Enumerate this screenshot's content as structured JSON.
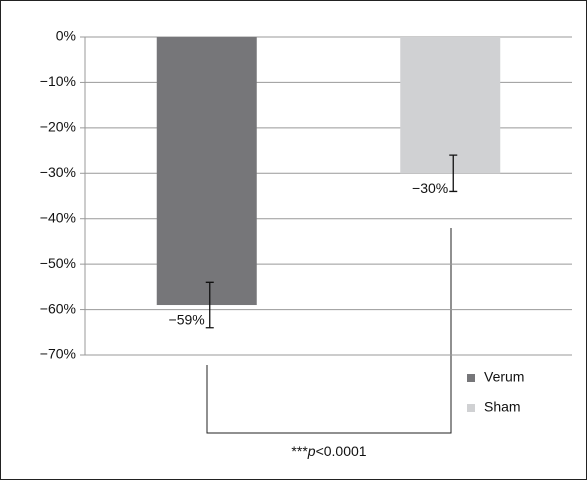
{
  "chart_data": {
    "type": "bar",
    "categories": [
      null
    ],
    "series": [
      {
        "name": "Verum",
        "color": "#767679",
        "values": [
          -59
        ],
        "value_labels": [
          "−59%"
        ],
        "errors": [
          5
        ]
      },
      {
        "name": "Sham",
        "color": "#d0d1d3",
        "values": [
          -30
        ],
        "value_labels": [
          "−30%"
        ],
        "errors": [
          4
        ]
      }
    ],
    "ylim": [
      -70,
      0
    ],
    "yticks": [
      {
        "value": -70,
        "label": "−70%"
      },
      {
        "value": -60,
        "label": "−60%"
      },
      {
        "value": -50,
        "label": "−50%"
      },
      {
        "value": -40,
        "label": "−40%"
      },
      {
        "value": -30,
        "label": "−30%"
      },
      {
        "value": -20,
        "label": "−20%"
      },
      {
        "value": -10,
        "label": "−10%"
      },
      {
        "value": 0,
        "label": "0%"
      }
    ],
    "grid": true,
    "legend": "bottom-right",
    "annotation": [
      "***",
      "p",
      "<0.0001"
    ]
  }
}
